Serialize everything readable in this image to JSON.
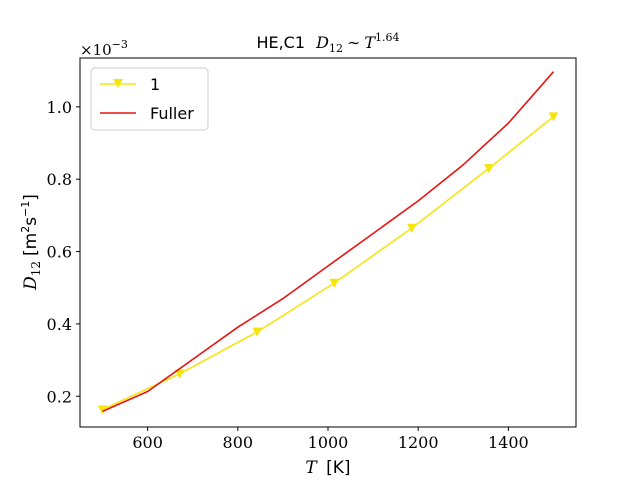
{
  "chart_data": {
    "type": "line",
    "title_text": "HE,C1",
    "title_math_base": "D",
    "title_math_sub": "12",
    "title_math_rel": "∼",
    "title_math_var": "T",
    "title_math_exp": "1.64",
    "xlabel_var": "T",
    "xlabel_unit": "[K]",
    "ylabel_var": "D",
    "ylabel_sub": "12",
    "ylabel_unit_open": "[m",
    "ylabel_unit_exp1": "2",
    "ylabel_unit_mid": "s",
    "ylabel_unit_exp2": "−1",
    "ylabel_unit_close": "]",
    "y_multiplier_base": "×10",
    "y_multiplier_exp": "−3",
    "xlim": [
      450,
      1550
    ],
    "ylim": [
      0.115,
      1.135
    ],
    "x_ticks": [
      600,
      800,
      1000,
      1200,
      1400
    ],
    "x_tick_labels": [
      "600",
      "800",
      "1000",
      "1200",
      "1400"
    ],
    "y_ticks": [
      0.2,
      0.4,
      0.6,
      0.8,
      1.0
    ],
    "y_tick_labels": [
      "0.2",
      "0.4",
      "0.6",
      "0.8",
      "1.0"
    ],
    "legend_placement": "top-left",
    "series": [
      {
        "name": "1",
        "color": "#f5e50f",
        "marker": "triangle-down",
        "x": [
          500,
          671,
          843,
          1014,
          1186,
          1357,
          1500
        ],
        "y": [
          0.163,
          0.262,
          0.378,
          0.513,
          0.665,
          0.83,
          0.973
        ]
      },
      {
        "name": "Fuller",
        "color": "#e8130f",
        "marker": "none",
        "x": [
          500,
          600,
          700,
          800,
          900,
          1000,
          1100,
          1200,
          1300,
          1400,
          1500
        ],
        "y": [
          0.158,
          0.213,
          0.302,
          0.391,
          0.47,
          0.56,
          0.65,
          0.74,
          0.84,
          0.955,
          1.097
        ]
      }
    ]
  }
}
